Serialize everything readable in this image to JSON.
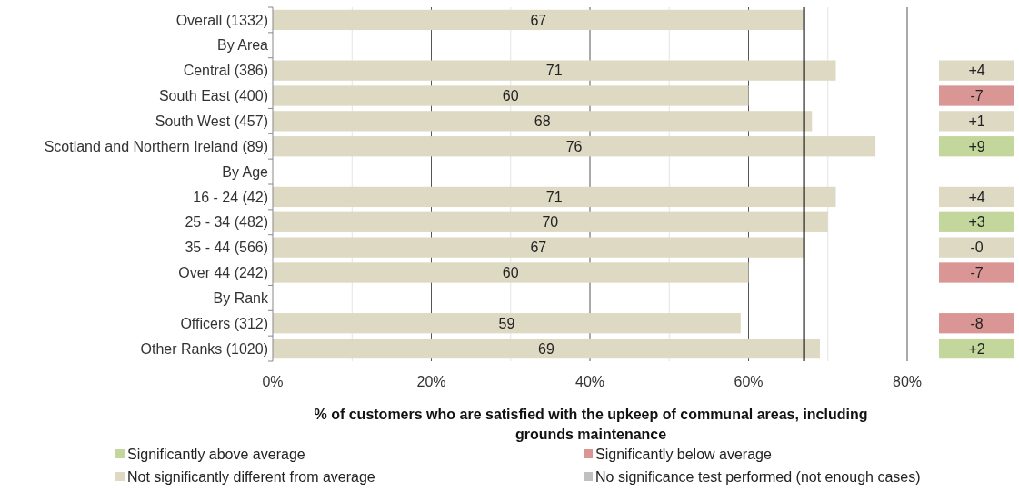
{
  "chart_data": [
    {
      "type": "bar",
      "orientation": "horizontal",
      "categories": [
        "Overall (1332)",
        "By Area",
        "Central (386)",
        "South East (400)",
        "South West (457)",
        "Scotland and Northern Ireland (89)",
        "By Age",
        "16 - 24 (42)",
        "25 - 34 (482)",
        "35 - 44 (566)",
        "Over 44 (242)",
        "By Rank",
        "Officers (312)",
        "Other Ranks (1020)"
      ],
      "values": [
        67,
        null,
        71,
        60,
        68,
        76,
        null,
        71,
        70,
        67,
        60,
        null,
        59,
        69
      ],
      "color": "#ddd9c3",
      "data_labels": true,
      "xlim": [
        0,
        80
      ],
      "xticks": [
        {
          "value": 0,
          "label": "0%"
        },
        {
          "value": 10,
          "label": null
        },
        {
          "value": 20,
          "label": "20%"
        },
        {
          "value": 30,
          "label": null
        },
        {
          "value": 40,
          "label": "40%"
        },
        {
          "value": 50,
          "label": null
        },
        {
          "value": 60,
          "label": "60%"
        },
        {
          "value": 70,
          "label": null
        },
        {
          "value": 80,
          "label": "80%"
        }
      ],
      "grid": "x",
      "ref_lines": [
        {
          "axis": "x",
          "value": 67,
          "color": "#000000"
        }
      ],
      "xlabel": "% of customers who are satisfied with the upkeep of communal areas, including grounds maintenance"
    },
    {
      "type": "other",
      "categories": [
        null,
        null,
        "+4",
        "-7",
        "+1",
        "+9",
        null,
        "+4",
        "+3",
        "-0",
        "-7",
        null,
        "-8",
        "+2"
      ],
      "colors": [
        null,
        null,
        "#ddd9c3",
        "#d99694",
        "#ddd9c3",
        "#c3d69b",
        null,
        "#ddd9c3",
        "#c3d69b",
        "#ddd9c3",
        "#d99694",
        null,
        "#d99694",
        "#c3d69b"
      ],
      "legend": "bottom",
      "series": [
        {
          "name": "Significantly above average",
          "color": "#c3d69b",
          "values": [
            null,
            null,
            null,
            null,
            null,
            null,
            null,
            null,
            null,
            null,
            null,
            null,
            null,
            null
          ]
        },
        {
          "name": "Significantly below average",
          "color": "#d99694",
          "values": [
            null,
            null,
            null,
            null,
            null,
            null,
            null,
            null,
            null,
            null,
            null,
            null,
            null,
            null
          ]
        },
        {
          "name": "Not significantly different from average",
          "color": "#ddd9c3",
          "values": [
            null,
            null,
            null,
            null,
            null,
            null,
            null,
            null,
            null,
            null,
            null,
            null,
            null,
            null
          ]
        },
        {
          "name": "No significance test performed (not enough cases)",
          "color": "#c0c0c0",
          "values": [
            null,
            null,
            null,
            null,
            null,
            null,
            null,
            null,
            null,
            null,
            null,
            null,
            null,
            null
          ]
        }
      ]
    }
  ]
}
